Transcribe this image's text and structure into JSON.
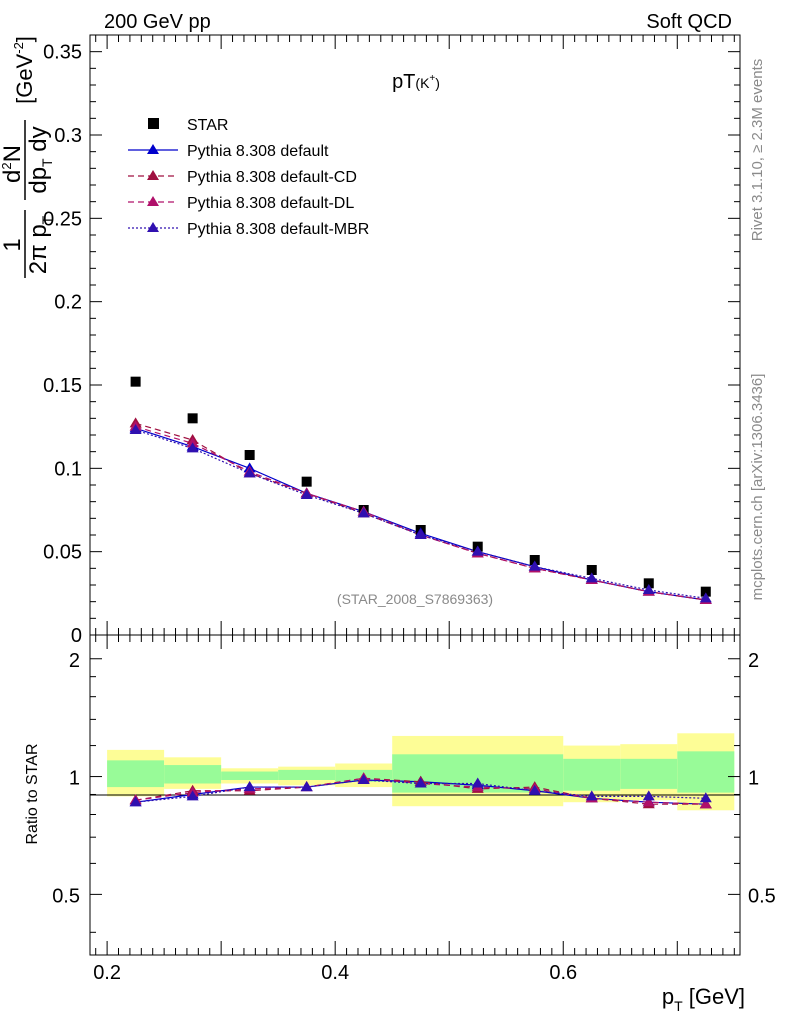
{
  "header": {
    "left": "200 GeV pp",
    "right": "Soft QCD"
  },
  "side_labels": {
    "rivet": "Rivet 3.1.10, ≥ 2.3M events",
    "mcplots": "mcplots.cern.ch [arXiv:1306.3436]"
  },
  "chart_data": [
    {
      "type": "scatter",
      "title": "pT(K⁺)",
      "ylabel": "1/(2π p_T) d²N/(dp_T dy) [GeV⁻²]",
      "watermark": "(STAR_2008_S7869363)",
      "xlim": [
        0.185,
        0.755
      ],
      "ylim": [
        0,
        0.36
      ],
      "y_ticks": [
        0,
        0.05,
        0.1,
        0.15,
        0.2,
        0.25,
        0.3,
        0.35
      ],
      "y_tick_labels": [
        "0",
        "0.05",
        "0.1",
        "0.15",
        "0.2",
        "0.25",
        "0.3",
        "0.35"
      ],
      "legend_position": "top-left",
      "x": [
        0.225,
        0.275,
        0.325,
        0.375,
        0.425,
        0.475,
        0.525,
        0.575,
        0.625,
        0.675,
        0.725
      ],
      "series": [
        {
          "name": "STAR",
          "style": "data",
          "color": "#000000",
          "values": [
            0.152,
            0.13,
            0.108,
            0.092,
            0.075,
            0.063,
            0.053,
            0.045,
            0.039,
            0.031,
            0.026
          ]
        },
        {
          "name": "Pythia 8.308 default",
          "style": "solid",
          "color": "#0000cc",
          "values": [
            0.124,
            0.113,
            0.1,
            0.085,
            0.074,
            0.061,
            0.05,
            0.041,
            0.033,
            0.026,
            0.021
          ]
        },
        {
          "name": "Pythia 8.308 default-CD",
          "style": "dashed",
          "color": "#a01040",
          "values": [
            0.127,
            0.117,
            0.097,
            0.085,
            0.073,
            0.06,
            0.049,
            0.04,
            0.033,
            0.026,
            0.021
          ]
        },
        {
          "name": "Pythia 8.308 default-DL",
          "style": "dashed",
          "color": "#b0106a",
          "values": [
            0.125,
            0.115,
            0.098,
            0.085,
            0.074,
            0.06,
            0.049,
            0.04,
            0.033,
            0.026,
            0.021
          ]
        },
        {
          "name": "Pythia 8.308 default-MBR",
          "style": "dotted",
          "color": "#3010b0",
          "values": [
            0.123,
            0.112,
            0.097,
            0.084,
            0.073,
            0.06,
            0.05,
            0.041,
            0.034,
            0.027,
            0.022
          ]
        }
      ]
    },
    {
      "type": "line",
      "ylabel": "Ratio to STAR",
      "xlabel": "p_T [GeV]",
      "xlim": [
        0.185,
        0.755
      ],
      "ylim": [
        0.35,
        2.3
      ],
      "x_ticks": [
        0.2,
        0.4,
        0.6
      ],
      "x_tick_labels": [
        "0.2",
        "0.4",
        "0.6"
      ],
      "y_ticks": [
        0.5,
        1,
        2
      ],
      "y_tick_labels": [
        "0.5",
        "1",
        "2"
      ],
      "bands": [
        {
          "x0": 0.2,
          "x1": 0.25,
          "yellow": [
            0.89,
            1.17
          ],
          "green": [
            0.94,
            1.1
          ]
        },
        {
          "x0": 0.25,
          "x1": 0.3,
          "yellow": [
            0.93,
            1.12
          ],
          "green": [
            0.96,
            1.07
          ]
        },
        {
          "x0": 0.3,
          "x1": 0.35,
          "yellow": [
            0.96,
            1.05
          ],
          "green": [
            0.98,
            1.03
          ]
        },
        {
          "x0": 0.35,
          "x1": 0.4,
          "yellow": [
            0.95,
            1.06
          ],
          "green": [
            0.98,
            1.04
          ]
        },
        {
          "x0": 0.4,
          "x1": 0.45,
          "yellow": [
            0.94,
            1.08
          ],
          "green": [
            0.97,
            1.04
          ]
        },
        {
          "x0": 0.45,
          "x1": 0.6,
          "yellow": [
            0.84,
            1.27
          ],
          "green": [
            0.91,
            1.14
          ]
        },
        {
          "x0": 0.6,
          "x1": 0.65,
          "yellow": [
            0.86,
            1.2
          ],
          "green": [
            0.92,
            1.11
          ]
        },
        {
          "x0": 0.65,
          "x1": 0.7,
          "yellow": [
            0.87,
            1.21
          ],
          "green": [
            0.93,
            1.11
          ]
        },
        {
          "x0": 0.7,
          "x1": 0.75,
          "yellow": [
            0.82,
            1.29
          ],
          "green": [
            0.91,
            1.16
          ]
        }
      ],
      "x": [
        0.225,
        0.275,
        0.325,
        0.375,
        0.425,
        0.475,
        0.525,
        0.575,
        0.625,
        0.675,
        0.725
      ],
      "series": [
        {
          "name": "Pythia 8.308 default",
          "style": "solid",
          "color": "#0000cc",
          "values": [
            0.86,
            0.9,
            0.94,
            0.94,
            0.98,
            0.97,
            0.95,
            0.92,
            0.88,
            0.86,
            0.85
          ]
        },
        {
          "name": "Pythia 8.308 default-CD",
          "style": "dashed",
          "color": "#a01040",
          "values": [
            0.87,
            0.92,
            0.92,
            0.94,
            0.99,
            0.97,
            0.93,
            0.94,
            0.88,
            0.85,
            0.85
          ]
        },
        {
          "name": "Pythia 8.308 default-DL",
          "style": "dashed",
          "color": "#b0106a",
          "values": [
            0.87,
            0.91,
            0.93,
            0.94,
            0.99,
            0.96,
            0.94,
            0.93,
            0.88,
            0.86,
            0.85
          ]
        },
        {
          "name": "Pythia 8.308 default-MBR",
          "style": "dotted",
          "color": "#3010b0",
          "values": [
            0.86,
            0.89,
            0.94,
            0.94,
            0.98,
            0.96,
            0.96,
            0.92,
            0.89,
            0.89,
            0.88
          ]
        }
      ]
    }
  ]
}
